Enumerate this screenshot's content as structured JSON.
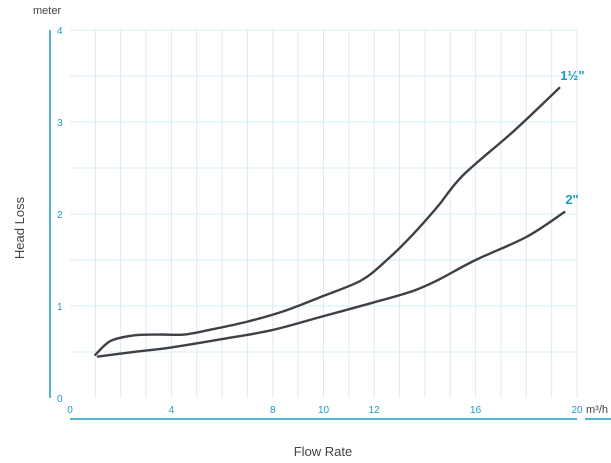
{
  "chart_data": {
    "type": "line",
    "xlabel": "Flow Rate",
    "ylabel": "Head Loss",
    "y_unit": "meter",
    "x_unit": "m³/h",
    "xlim": [
      0,
      20
    ],
    "ylim": [
      0,
      4
    ],
    "x_ticks": [
      0,
      4,
      8,
      10,
      12,
      16,
      20
    ],
    "y_ticks": [
      0,
      1,
      2,
      3,
      4
    ],
    "grid": true,
    "colors": {
      "axis": "#1a9bc7",
      "grid": "#d7ecf5",
      "line": "#3f3f46",
      "label": "#1a9bc7"
    },
    "series": [
      {
        "name": "1½\"",
        "x": [
          1.0,
          1.6,
          2.5,
          3.5,
          4.5,
          5.5,
          7.0,
          8.5,
          10.0,
          11.5,
          12.5,
          13.5,
          14.5,
          15.5,
          17.5,
          19.3
        ],
        "y": [
          0.47,
          0.62,
          0.68,
          0.69,
          0.69,
          0.74,
          0.83,
          0.95,
          1.11,
          1.28,
          1.5,
          1.77,
          2.08,
          2.42,
          2.9,
          3.37
        ]
      },
      {
        "name": "2\"",
        "x": [
          1.1,
          2.5,
          4.0,
          6.0,
          8.0,
          10.0,
          12.0,
          13.5,
          14.5,
          16.0,
          18.0,
          19.5
        ],
        "y": [
          0.45,
          0.5,
          0.55,
          0.64,
          0.74,
          0.89,
          1.04,
          1.16,
          1.28,
          1.5,
          1.75,
          2.02
        ]
      }
    ]
  }
}
